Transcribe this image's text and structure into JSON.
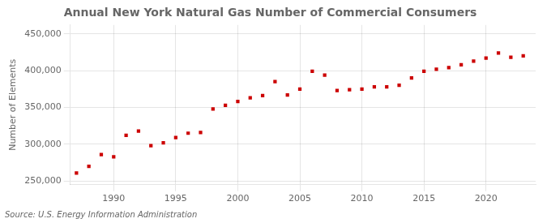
{
  "chart_data": {
    "type": "scatter",
    "title": "Annual New York Natural Gas Number of Commercial Consumers",
    "ylabel": "Number of Elements",
    "annotation": "Source: U.S. Energy Information Administration",
    "x": [
      1987,
      1988,
      1989,
      1990,
      1991,
      1992,
      1993,
      1994,
      1995,
      1996,
      1997,
      1998,
      1999,
      2000,
      2001,
      2002,
      2003,
      2004,
      2005,
      2006,
      2007,
      2008,
      2009,
      2010,
      2011,
      2012,
      2013,
      2014,
      2015,
      2016,
      2017,
      2018,
      2019,
      2020,
      2021,
      2022,
      2023
    ],
    "values": [
      261000,
      270000,
      286000,
      283000,
      312000,
      318000,
      298000,
      302000,
      309000,
      315000,
      316000,
      348000,
      353000,
      358000,
      363000,
      366000,
      385000,
      367000,
      375000,
      399000,
      394000,
      373000,
      374000,
      375000,
      378000,
      378000,
      380000,
      390000,
      399000,
      402000,
      404000,
      408000,
      413000,
      417000,
      424000,
      418000,
      420000
    ],
    "color": "#cc0000",
    "marker": "square",
    "xlim": [
      1986.5,
      2024
    ],
    "xticks": [
      1990,
      1995,
      2000,
      2005,
      2010,
      2015,
      2020
    ],
    "ylim": [
      245000,
      462000
    ],
    "yticks": [
      {
        "value": 250000,
        "label": "250,000"
      },
      {
        "value": 300000,
        "label": "300,000"
      },
      {
        "value": 350000,
        "label": "350,000"
      },
      {
        "value": 400000,
        "label": "400,000"
      },
      {
        "value": 450000,
        "label": "450,000"
      }
    ],
    "grid": true
  }
}
